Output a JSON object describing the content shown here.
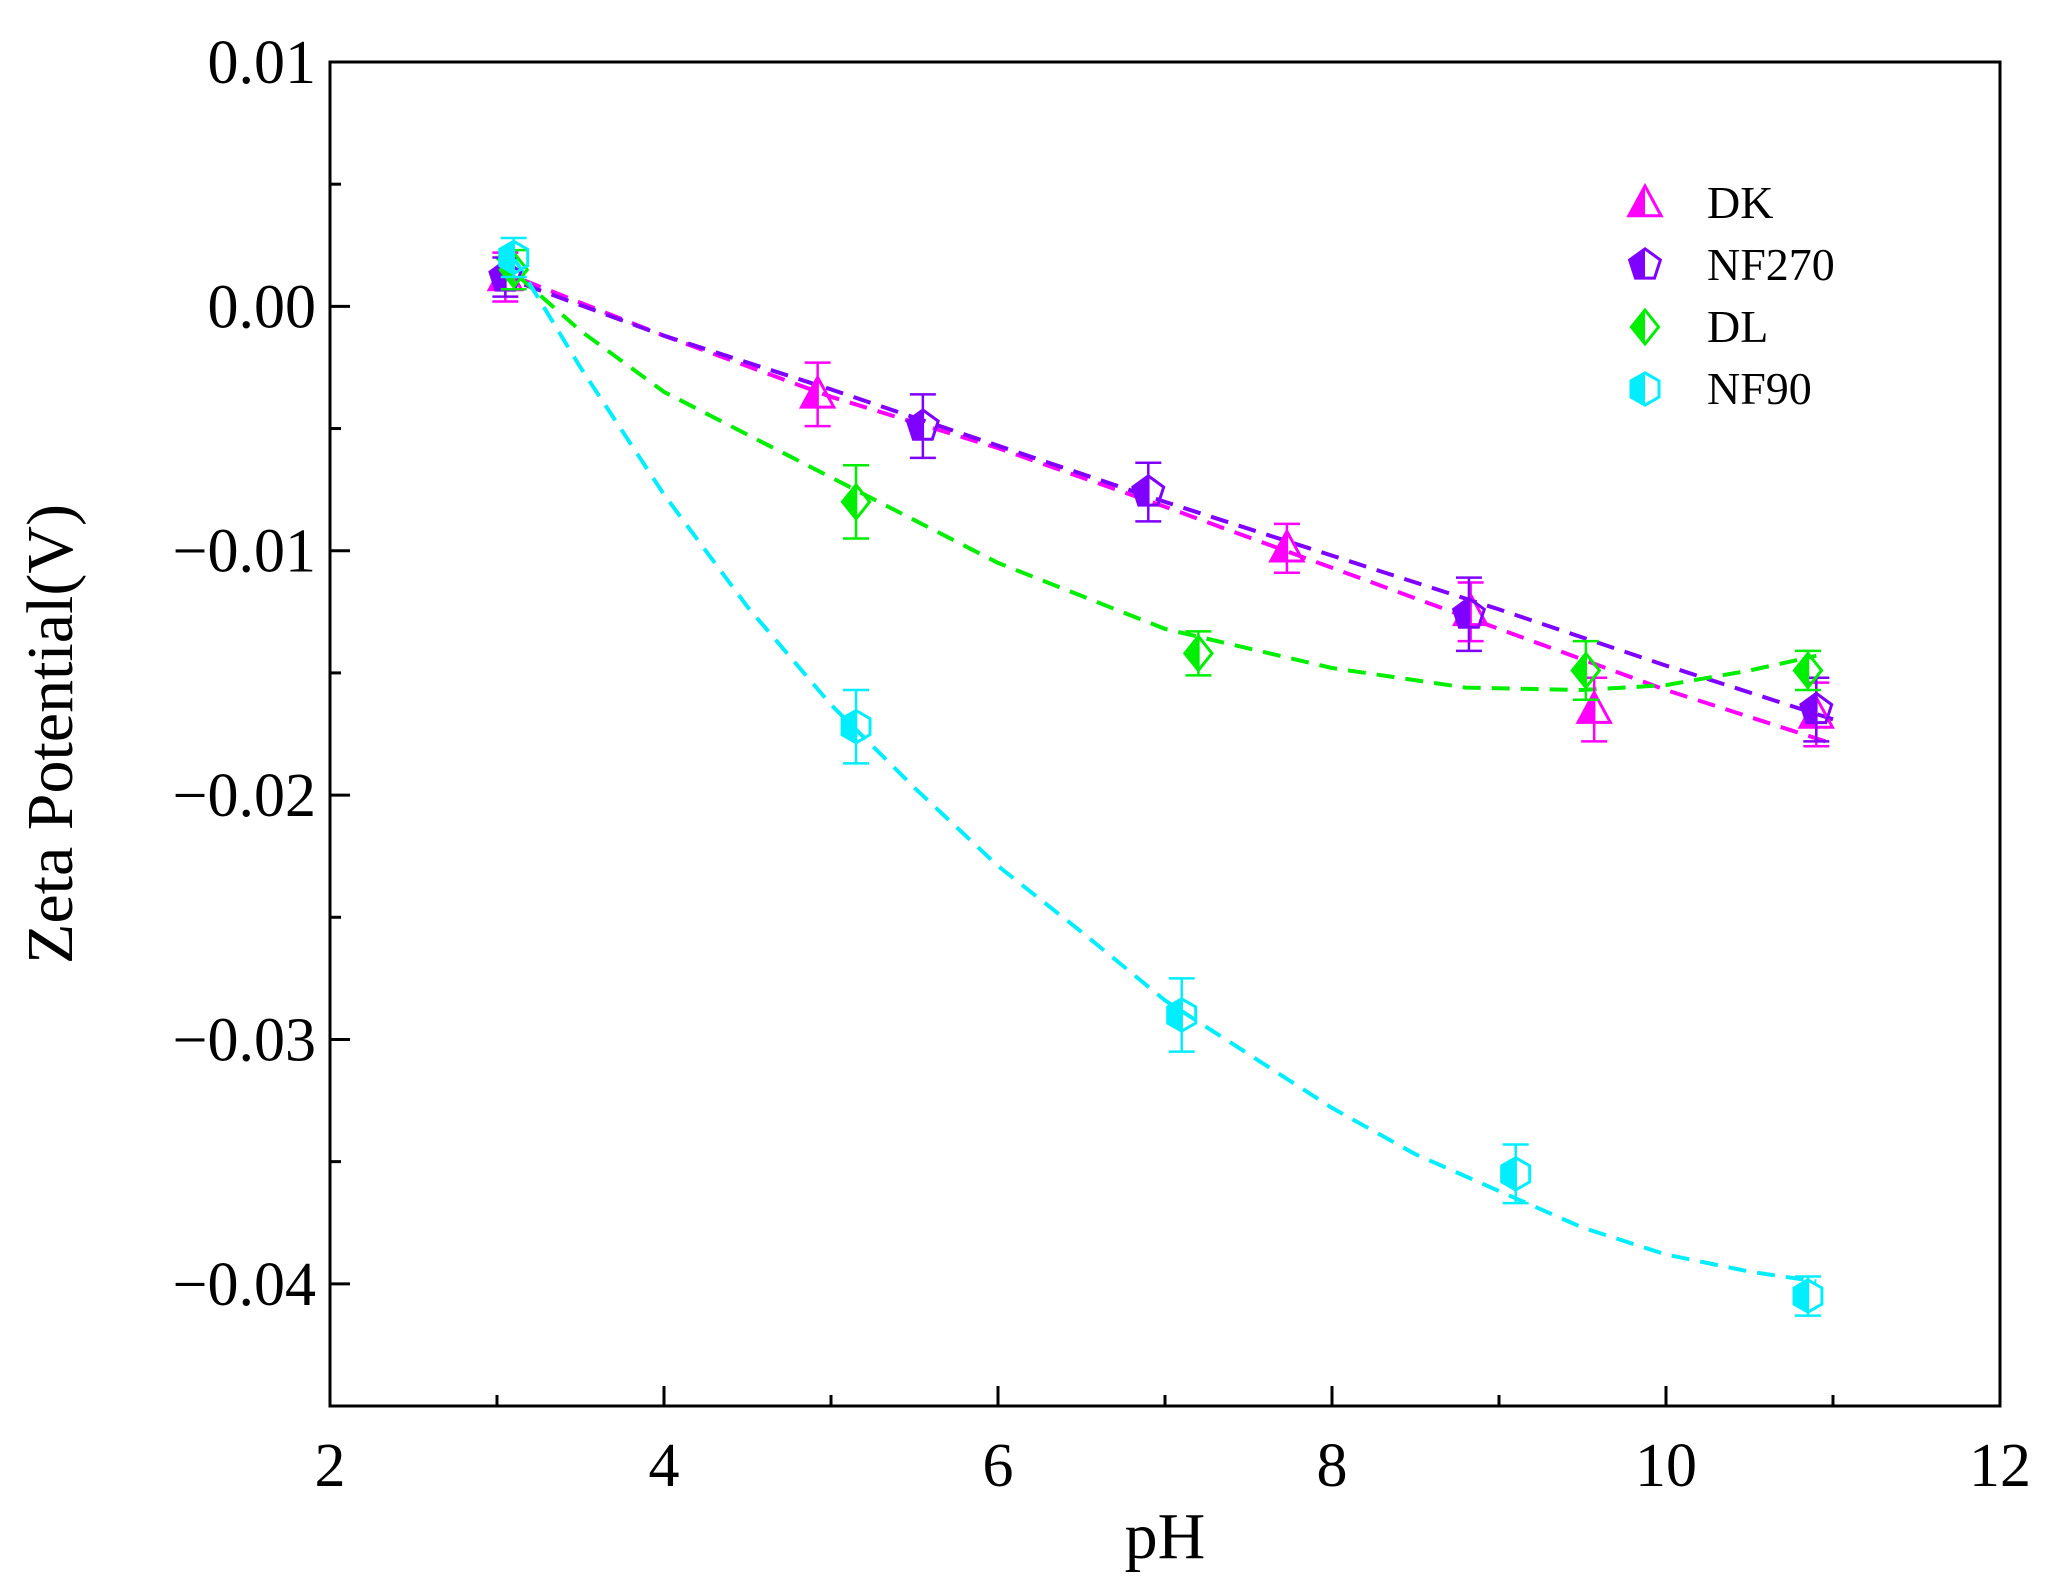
{
  "chart_data": {
    "type": "scatter",
    "title": "",
    "xlabel": "pH",
    "ylabel": "Zeta Potential(V)",
    "xlim": [
      2,
      12
    ],
    "ylim": [
      -0.045,
      0.01
    ],
    "x_ticks": [
      2,
      4,
      6,
      8,
      10,
      12
    ],
    "x_tick_labels": [
      "2",
      "4",
      "6",
      "8",
      "10",
      "12"
    ],
    "y_ticks": [
      0.01,
      0.0,
      -0.01,
      -0.02,
      -0.03,
      -0.04
    ],
    "y_tick_labels": [
      "0.01",
      "0.00",
      "−0.01",
      "−0.02",
      "−0.03",
      "−0.04"
    ],
    "legend_position": "top-right",
    "series": [
      {
        "name": "DK",
        "color": "#ff00ff",
        "marker": "triangle",
        "x": [
          3.05,
          4.92,
          7.73,
          8.83,
          9.57,
          10.9
        ],
        "y": [
          0.0012,
          -0.0036,
          -0.0099,
          -0.0125,
          -0.0165,
          -0.0167
        ],
        "err": [
          0.001,
          0.0013,
          0.001,
          0.0012,
          0.0013,
          0.0013
        ],
        "fit": [
          [
            3.0,
            0.0015
          ],
          [
            4.0,
            -0.0012
          ],
          [
            5.0,
            -0.0037
          ],
          [
            6.0,
            -0.0058
          ],
          [
            7.0,
            -0.0082
          ],
          [
            8.0,
            -0.0107
          ],
          [
            9.0,
            -0.0132
          ],
          [
            10.0,
            -0.0157
          ],
          [
            11.0,
            -0.0179
          ]
        ]
      },
      {
        "name": "NF270",
        "color": "#8000ff",
        "marker": "pentagon",
        "x": [
          3.05,
          5.55,
          6.9,
          8.82,
          10.9
        ],
        "y": [
          0.0012,
          -0.0049,
          -0.0076,
          -0.0126,
          -0.0165
        ],
        "err": [
          0.0008,
          0.0013,
          0.0012,
          0.0015,
          0.0013
        ],
        "fit": [
          [
            3.0,
            0.0013
          ],
          [
            4.0,
            -0.0012
          ],
          [
            5.0,
            -0.0034
          ],
          [
            6.0,
            -0.0057
          ],
          [
            7.0,
            -0.008
          ],
          [
            8.0,
            -0.0102
          ],
          [
            9.0,
            -0.0124
          ],
          [
            10.0,
            -0.0147
          ],
          [
            11.0,
            -0.0169
          ]
        ]
      },
      {
        "name": "DL",
        "color": "#00ee00",
        "marker": "diamond",
        "x": [
          3.1,
          5.15,
          7.2,
          9.52,
          10.85
        ],
        "y": [
          0.0015,
          -0.008,
          -0.0142,
          -0.0149,
          -0.0149
        ],
        "err": [
          0.0008,
          0.0015,
          0.0009,
          0.0012,
          0.0008
        ],
        "fit": [
          [
            3.0,
            0.002
          ],
          [
            3.5,
            -0.001
          ],
          [
            4.0,
            -0.0035
          ],
          [
            5.0,
            -0.007
          ],
          [
            6.0,
            -0.0105
          ],
          [
            7.0,
            -0.0132
          ],
          [
            8.0,
            -0.0148
          ],
          [
            8.8,
            -0.0156
          ],
          [
            9.5,
            -0.0157
          ],
          [
            10.0,
            -0.0155
          ],
          [
            10.5,
            -0.0149
          ],
          [
            10.9,
            -0.0143
          ]
        ]
      },
      {
        "name": "NF90",
        "color": "#00eeff",
        "marker": "hexagon",
        "x": [
          3.1,
          5.15,
          7.1,
          9.1,
          10.85
        ],
        "y": [
          0.002,
          -0.0172,
          -0.029,
          -0.0355,
          -0.0405
        ],
        "err": [
          0.0008,
          0.0015,
          0.0015,
          0.0012,
          0.0008
        ],
        "fit": [
          [
            3.1,
            0.002
          ],
          [
            3.5,
            -0.0025
          ],
          [
            4.0,
            -0.0077
          ],
          [
            4.5,
            -0.0123
          ],
          [
            5.0,
            -0.0163
          ],
          [
            5.5,
            -0.0197
          ],
          [
            6.0,
            -0.0229
          ],
          [
            6.5,
            -0.0256
          ],
          [
            7.0,
            -0.0284
          ],
          [
            7.5,
            -0.0306
          ],
          [
            8.0,
            -0.0328
          ],
          [
            8.5,
            -0.0347
          ],
          [
            9.0,
            -0.0362
          ],
          [
            9.5,
            -0.0377
          ],
          [
            10.0,
            -0.0388
          ],
          [
            10.5,
            -0.0395
          ],
          [
            10.9,
            -0.0399
          ]
        ]
      }
    ]
  }
}
